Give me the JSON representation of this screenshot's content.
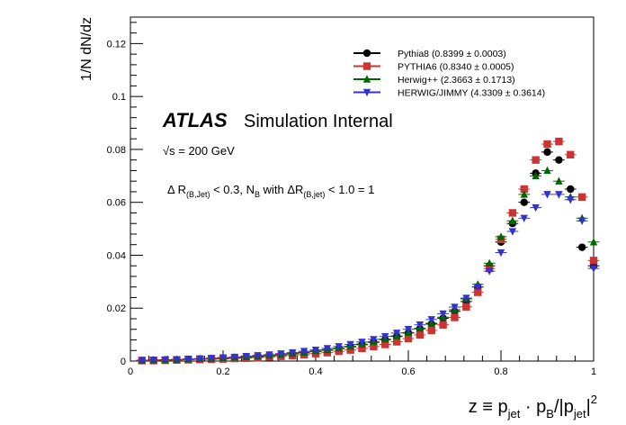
{
  "chart_data": {
    "type": "scatter",
    "ylabel": "1/N dN/dz",
    "xlabel_parts": [
      "z ≡ p",
      "jet",
      " · p",
      "B",
      "/|p",
      "jet",
      "|",
      "2"
    ],
    "xlim": [
      0,
      1.0
    ],
    "ylim": [
      0,
      0.13
    ],
    "x_ticks": [
      0,
      0.2,
      0.4,
      0.6,
      0.8,
      1
    ],
    "x_tick_labels": [
      "0",
      "0.2",
      "0.4",
      "0.6",
      "0.8",
      "1"
    ],
    "y_ticks": [
      0,
      0.02,
      0.04,
      0.06,
      0.08,
      0.1,
      0.12
    ],
    "y_tick_labels": [
      "0",
      "0.02",
      "0.04",
      "0.06",
      "0.08",
      "0.1",
      "0.12"
    ],
    "grid": false,
    "legend_placement": "top-right",
    "annotations": {
      "atlas": "ATLAS",
      "internal": "Simulation Internal",
      "energy": "√s = 200 GeV",
      "cut_parts": [
        "Δ R",
        "(B,Jet)",
        " < 0.3, N",
        "B",
        " with ΔR",
        "(B,jet)",
        " < 1.0 = 1"
      ]
    },
    "x": [
      0.025,
      0.05,
      0.075,
      0.1,
      0.125,
      0.15,
      0.175,
      0.2,
      0.225,
      0.25,
      0.275,
      0.3,
      0.325,
      0.35,
      0.375,
      0.4,
      0.425,
      0.45,
      0.475,
      0.5,
      0.525,
      0.55,
      0.575,
      0.6,
      0.625,
      0.65,
      0.675,
      0.7,
      0.725,
      0.75,
      0.775,
      0.8,
      0.825,
      0.85,
      0.875,
      0.9,
      0.925,
      0.95,
      0.975,
      1.0
    ],
    "series": [
      {
        "name": "Pythia8 (0.8399 ± 0.0003)",
        "color": "#000000",
        "marker": "circle",
        "values": [
          0.0002,
          0.0003,
          0.0004,
          0.0005,
          0.0006,
          0.0007,
          0.0008,
          0.001,
          0.0012,
          0.0014,
          0.0017,
          0.002,
          0.0023,
          0.0027,
          0.0031,
          0.0036,
          0.0041,
          0.0047,
          0.0054,
          0.0062,
          0.0071,
          0.0081,
          0.0093,
          0.0106,
          0.0122,
          0.014,
          0.0162,
          0.0188,
          0.0225,
          0.028,
          0.036,
          0.045,
          0.052,
          0.06,
          0.071,
          0.079,
          0.076,
          0.065,
          0.043,
          0.036
        ]
      },
      {
        "name": "PYTHIA6 (0.8340 ± 0.0005)",
        "color": "#cc3333",
        "marker": "square",
        "values": [
          0.0002,
          0.0002,
          0.0003,
          0.0004,
          0.0005,
          0.0006,
          0.0007,
          0.0008,
          0.001,
          0.0011,
          0.0013,
          0.0016,
          0.0018,
          0.0021,
          0.0024,
          0.0028,
          0.0032,
          0.0037,
          0.0042,
          0.0048,
          0.0055,
          0.0063,
          0.0073,
          0.0085,
          0.0099,
          0.0116,
          0.0137,
          0.0165,
          0.0205,
          0.026,
          0.035,
          0.046,
          0.056,
          0.065,
          0.076,
          0.082,
          0.083,
          0.078,
          0.062,
          0.038
        ]
      },
      {
        "name": "Herwig++ (2.3663 ± 0.1713)",
        "color": "#006600",
        "marker": "triangle-up",
        "values": [
          0.0003,
          0.0004,
          0.0005,
          0.0006,
          0.0007,
          0.0009,
          0.001,
          0.0012,
          0.0014,
          0.0016,
          0.0019,
          0.0022,
          0.0025,
          0.0029,
          0.0033,
          0.0038,
          0.0043,
          0.0049,
          0.0056,
          0.0064,
          0.0073,
          0.0083,
          0.0095,
          0.0108,
          0.0124,
          0.0143,
          0.0166,
          0.0194,
          0.0235,
          0.029,
          0.037,
          0.047,
          0.053,
          0.063,
          0.07,
          0.072,
          0.068,
          0.062,
          0.054,
          0.045
        ]
      },
      {
        "name": "HERWIG/JIMMY (4.3309 ± 0.3614)",
        "color": "#3333cc",
        "marker": "triangle-down",
        "values": [
          0.0003,
          0.0004,
          0.0005,
          0.0006,
          0.0008,
          0.0009,
          0.0011,
          0.0013,
          0.0015,
          0.0018,
          0.0021,
          0.0024,
          0.0028,
          0.0032,
          0.0037,
          0.0042,
          0.0048,
          0.0055,
          0.0063,
          0.0072,
          0.0082,
          0.0093,
          0.0106,
          0.012,
          0.0137,
          0.0157,
          0.0179,
          0.0204,
          0.0238,
          0.028,
          0.034,
          0.041,
          0.049,
          0.054,
          0.058,
          0.063,
          0.063,
          0.061,
          0.053,
          0.035
        ]
      }
    ]
  }
}
